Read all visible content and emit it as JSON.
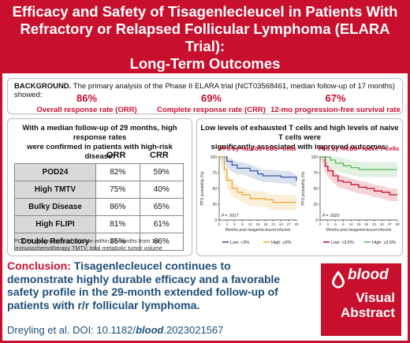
{
  "title": {
    "line1": "Efficacy and Safety of Tisagenlecleucel in Patients With",
    "line2": "Refractory or Relapsed Follicular Lymphoma (ELARA Trial):",
    "line3": "Long-Term Outcomes"
  },
  "background": {
    "label": "BACKGROUND.",
    "text": " The primary analysis of the Phase II ELARA trial (NCT03568461, median follow-up of 17 months) showed:",
    "stats": [
      {
        "value": "86%",
        "label": "Overall response rate (ORR)"
      },
      {
        "value": "69%",
        "label": "Complete response rate (CRR)"
      },
      {
        "value": "67%",
        "label": "12-mo progression-free survival rate"
      }
    ]
  },
  "left_panel": {
    "heading1": "With a median follow-up of 29 months, high response rates",
    "heading2": "were confirmed in patients with high-risk disease:",
    "col_orr": "ORR",
    "col_crr": "CRR",
    "rows": [
      {
        "label": "POD24",
        "orr": "82%",
        "crr": "59%"
      },
      {
        "label": "High TMTV",
        "orr": "75%",
        "crr": "40%"
      },
      {
        "label": "Bulky Disease",
        "orr": "86%",
        "crr": "65%"
      },
      {
        "label": "High FLIPI",
        "orr": "81%",
        "crr": "61%"
      },
      {
        "label": "Double Refractory",
        "orr": "85%",
        "crr": "66%"
      }
    ],
    "footnote1": "POD24, progression of disease within 24 months from 1st",
    "footnote2": "immunochemotherapy TMTV, total metabolic tumor volume"
  },
  "right_panel": {
    "heading1": "Low levels of exhausted T cells and high levels of naive T cells were",
    "heading2": "significantly associated with improved outcomes:"
  },
  "chart_data": [
    {
      "type": "line",
      "title": "PFS by %LAG3+CD3+ Cells",
      "ylabel": "PFS probability (%)",
      "xlabel": "Months post tisagenlecleucel infusion",
      "ylim": [
        0,
        100
      ],
      "xlim": [
        0,
        30
      ],
      "x_ticks": [
        0,
        3,
        6,
        9,
        12,
        15,
        18,
        21,
        24,
        27,
        30
      ],
      "y_ticks": [
        0,
        25,
        50,
        75,
        100
      ],
      "p_value": "P = .0017",
      "series": [
        {
          "name": "Low: <3%",
          "color": "#3a57a7",
          "points": [
            [
              0,
              100
            ],
            [
              2,
              100
            ],
            [
              3,
              93
            ],
            [
              5,
              87
            ],
            [
              7,
              82
            ],
            [
              9,
              82
            ],
            [
              12,
              78
            ],
            [
              15,
              73
            ],
            [
              17,
              70
            ],
            [
              20,
              70
            ],
            [
              24,
              68
            ],
            [
              27,
              68
            ],
            [
              30,
              62
            ]
          ]
        },
        {
          "name": "High: ≥3%",
          "color": "#f0a830",
          "points": [
            [
              0,
              100
            ],
            [
              2,
              80
            ],
            [
              3,
              63
            ],
            [
              5,
              50
            ],
            [
              7,
              44
            ],
            [
              9,
              40
            ],
            [
              12,
              34
            ],
            [
              15,
              34
            ],
            [
              18,
              32
            ],
            [
              21,
              28
            ],
            [
              24,
              28
            ],
            [
              27,
              28
            ],
            [
              30,
              28
            ]
          ]
        }
      ]
    },
    {
      "type": "line",
      "title": "PFS by %CD8+ Naive T-Cells",
      "ylabel": "PFS probability (%)",
      "xlabel": "Months post tisagenlecleucel infusion",
      "ylim": [
        0,
        100
      ],
      "xlim": [
        0,
        30
      ],
      "x_ticks": [
        0,
        3,
        6,
        9,
        12,
        15,
        18,
        21,
        24,
        27,
        30
      ],
      "y_ticks": [
        0,
        25,
        50,
        75,
        100
      ],
      "p_value": "P = .0023",
      "series": [
        {
          "name": "Low: <3.5%",
          "color": "#c8102e",
          "points": [
            [
              0,
              100
            ],
            [
              2,
              85
            ],
            [
              3,
              78
            ],
            [
              5,
              70
            ],
            [
              7,
              62
            ],
            [
              9,
              60
            ],
            [
              12,
              56
            ],
            [
              15,
              52
            ],
            [
              18,
              50
            ],
            [
              21,
              46
            ],
            [
              24,
              44
            ],
            [
              27,
              40
            ],
            [
              30,
              40
            ]
          ]
        },
        {
          "name": "High: ≥3.5%",
          "color": "#5cb85c",
          "points": [
            [
              0,
              100
            ],
            [
              2,
              100
            ],
            [
              4,
              95
            ],
            [
              6,
              90
            ],
            [
              9,
              86
            ],
            [
              12,
              83
            ],
            [
              15,
              80
            ],
            [
              18,
              80
            ],
            [
              21,
              80
            ],
            [
              24,
              80
            ],
            [
              27,
              80
            ],
            [
              30,
              80
            ]
          ]
        }
      ]
    }
  ],
  "conclusion": {
    "label": "Conclusion:",
    "text": " Tisagenlecleucel continues to demonstrate highly durable efficacy and a favorable safety profile in the 29-month extended follow-up of patients with r/r follicular lymphoma."
  },
  "citation": {
    "authors": "Dreyling et al. DOI: 10.1182/",
    "journal": "blood",
    "suffix": ".2023021567"
  },
  "badge": {
    "brand": "blood",
    "line1": "Visual",
    "line2": "Abstract",
    "brand_color": "#c8102e"
  }
}
